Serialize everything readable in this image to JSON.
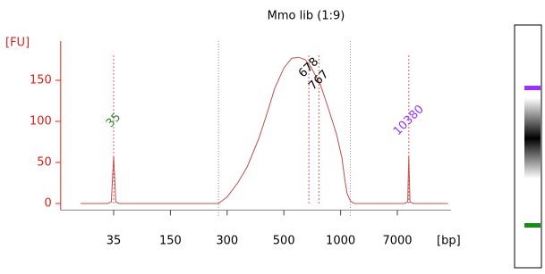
{
  "chart_data": {
    "type": "line",
    "title": "Mmo lib (1:9)",
    "ylabel": "[FU]",
    "xlabel": "[bp]",
    "x": [
      15,
      30,
      33,
      35,
      37,
      40,
      200,
      270,
      300,
      330,
      360,
      400,
      430,
      460,
      500,
      550,
      600,
      650,
      700,
      780,
      850,
      950,
      1050,
      1150,
      1250,
      1400,
      1600,
      9000,
      10000,
      10380,
      10800,
      12000,
      40000
    ],
    "series": [
      {
        "name": "Mmo lib (1:9)",
        "color": "#c0504d",
        "values": [
          0,
          0,
          2,
          58,
          2,
          0,
          0,
          0,
          8,
          25,
          45,
          80,
          110,
          140,
          165,
          177,
          178,
          175,
          165,
          145,
          120,
          85,
          55,
          30,
          12,
          3,
          0,
          0,
          2,
          58,
          2,
          0,
          0
        ]
      }
    ],
    "peaks": [
      {
        "x": 35,
        "label": "35",
        "color": "#2e8b2e"
      },
      {
        "x": 678,
        "label": "678",
        "color": "#000000"
      },
      {
        "x": 767,
        "label": "767",
        "color": "#000000"
      },
      {
        "x": 10380,
        "label": "10380",
        "color": "#9b30ff"
      }
    ],
    "region": [
      270,
      1400
    ],
    "xlim": [
      9,
      44000
    ],
    "xticks": [
      35,
      150,
      300,
      500,
      1000,
      7000
    ],
    "ylim": [
      -8,
      198
    ],
    "yticks": [
      0,
      50,
      100,
      150
    ]
  }
}
